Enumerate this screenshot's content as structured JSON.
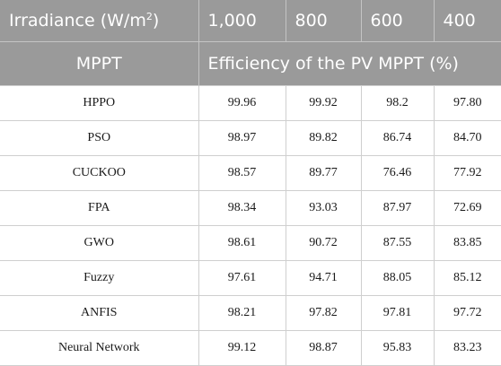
{
  "header": {
    "irradiance_label": "Irradiance (W/m",
    "irradiance_sup": "2",
    "irradiance_close": ")",
    "levels": [
      "1,000",
      "800",
      "600",
      "400"
    ],
    "mppt_label": "MPPT",
    "efficiency_label": "Efficiency of the PV MPPT (%)"
  },
  "rows": [
    {
      "method": "HPPO",
      "values": [
        "99.96",
        "99.92",
        "98.2",
        "97.80"
      ]
    },
    {
      "method": "PSO",
      "values": [
        "98.97",
        "89.82",
        "86.74",
        "84.70"
      ]
    },
    {
      "method": "CUCKOO",
      "values": [
        "98.57",
        "89.77",
        "76.46",
        "77.92"
      ]
    },
    {
      "method": "FPA",
      "values": [
        "98.34",
        "93.03",
        "87.97",
        "72.69"
      ]
    },
    {
      "method": "GWO",
      "values": [
        "98.61",
        "90.72",
        "87.55",
        "83.85"
      ]
    },
    {
      "method": "Fuzzy",
      "values": [
        "97.61",
        "94.71",
        "88.05",
        "85.12"
      ]
    },
    {
      "method": "ANFIS",
      "values": [
        "98.21",
        "97.82",
        "97.81",
        "97.72"
      ]
    },
    {
      "method": "Neural Network",
      "values": [
        "99.12",
        "98.87",
        "95.83",
        "83.23"
      ]
    }
  ]
}
